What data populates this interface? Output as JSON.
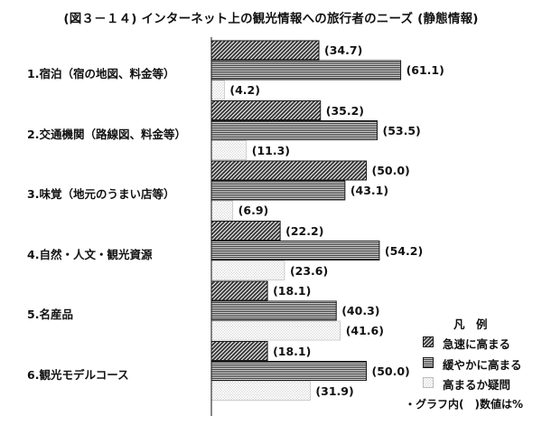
{
  "title": "(図３－１４) インターネット上の観光情報への旅行者のニーズ (静態情報)",
  "chart_data": {
    "type": "bar",
    "orientation": "horizontal",
    "categories": [
      "1.宿泊（宿の地図、料金等）",
      "2.交通機関（路線図、料金等）",
      "3.味覚（地元のうまい店等）",
      "4.自然・人文・観光資源",
      "5.名産品",
      "6.観光モデルコース"
    ],
    "series": [
      {
        "name": "急速に高まる",
        "values": [
          34.7,
          35.2,
          50.0,
          22.2,
          18.1,
          18.1
        ]
      },
      {
        "name": "緩やかに高まる",
        "values": [
          61.1,
          53.5,
          43.1,
          54.2,
          40.3,
          50.0
        ]
      },
      {
        "name": "高まるか疑問",
        "values": [
          4.2,
          11.3,
          6.9,
          23.6,
          41.6,
          31.9
        ]
      }
    ],
    "value_labels": [
      [
        "(34.7)",
        "(61.1)",
        "(4.2)"
      ],
      [
        "(35.2)",
        "(53.5)",
        "(11.3)"
      ],
      [
        "(50.0)",
        "(43.1)",
        "(6.9)"
      ],
      [
        "(22.2)",
        "(54.2)",
        "(23.6)"
      ],
      [
        "(18.1)",
        "(40.3)",
        "(41.6)"
      ],
      [
        "(18.1)",
        "(50.0)",
        "(31.9)"
      ]
    ],
    "legend": {
      "title": "凡　例",
      "placement": "bottom-right",
      "note": "・グラフ内(　)数値は%"
    },
    "grid": false
  },
  "colors": {
    "dark_hatch": "#3a3a3a",
    "line_hatch": "#3c3c3c",
    "light_dots": "#b9b9b9",
    "bar_border": "#1a1a1a",
    "axis": "#111111"
  }
}
